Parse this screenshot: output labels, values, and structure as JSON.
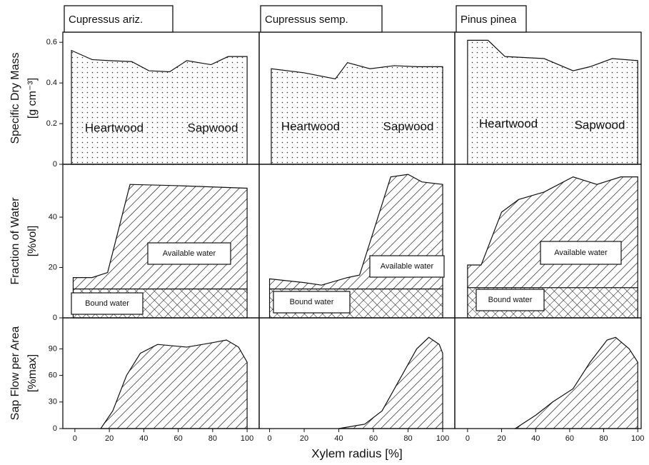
{
  "chart_data": [
    {
      "type": "area",
      "title": "Cupressus ariz.",
      "ylabel": [
        "Specific Dry Mass",
        "[g cm⁻³]"
      ],
      "annotations": [
        "Heartwood",
        "Sapwood"
      ],
      "xlim": [
        -7,
        107
      ],
      "ylim": [
        0,
        0.65
      ],
      "yticks": [
        0,
        0.2,
        0.4,
        0.6
      ],
      "x": [
        -2,
        10,
        20,
        33,
        43,
        55,
        65,
        79,
        89,
        100
      ],
      "series": [
        {
          "pattern": "dots",
          "values": [
            0.56,
            0.515,
            0.51,
            0.505,
            0.46,
            0.455,
            0.51,
            0.49,
            0.53,
            0.53
          ]
        }
      ]
    },
    {
      "type": "area",
      "title": "Cupressus semp.",
      "annotations": [
        "Heartwood",
        "Sapwood"
      ],
      "xlim": [
        -6,
        107
      ],
      "ylim": [
        0,
        0.65
      ],
      "x": [
        1,
        20,
        38,
        45,
        58,
        72,
        85,
        100
      ],
      "series": [
        {
          "pattern": "dots",
          "values": [
            0.47,
            0.45,
            0.42,
            0.5,
            0.47,
            0.485,
            0.48,
            0.48
          ]
        }
      ]
    },
    {
      "type": "area",
      "title": "Pinus pinea",
      "annotations": [
        "Heartwood",
        "Sapwood"
      ],
      "xlim": [
        -7.5,
        102
      ],
      "ylim": [
        0,
        0.65
      ],
      "x": [
        0,
        12,
        22,
        45,
        62,
        72,
        85,
        100
      ],
      "series": [
        {
          "pattern": "dots",
          "values": [
            0.61,
            0.61,
            0.53,
            0.52,
            0.46,
            0.48,
            0.52,
            0.51
          ]
        }
      ]
    },
    {
      "type": "area",
      "ylabel": [
        "Fraction of Water",
        "[%vol]"
      ],
      "xlim": [
        -7,
        107
      ],
      "ylim": [
        0,
        61
      ],
      "yticks": [
        0,
        20,
        40
      ],
      "x": [
        -1,
        10,
        19,
        32,
        60,
        100
      ],
      "series": [
        {
          "name": "Bound water",
          "pattern": "cross",
          "values": [
            11.5,
            11.5,
            11.5,
            11.5,
            11.5,
            11.5
          ]
        },
        {
          "name": "Available water",
          "pattern": "hatch",
          "values": [
            4.5,
            4.5,
            6.5,
            41.5,
            41,
            40
          ]
        }
      ]
    },
    {
      "type": "area",
      "xlim": [
        -6,
        107
      ],
      "ylim": [
        0,
        61
      ],
      "x": [
        0,
        20,
        30,
        45,
        52,
        70,
        80,
        88,
        100
      ],
      "series": [
        {
          "name": "Bound water",
          "pattern": "cross",
          "values": [
            11.5,
            11.5,
            11.5,
            11.5,
            11.5,
            11.5,
            11.5,
            11.5,
            11.5
          ]
        },
        {
          "name": "Available water",
          "pattern": "hatch",
          "values": [
            4,
            2.5,
            1.5,
            4.5,
            5.5,
            44.5,
            45.5,
            42.5,
            41.5
          ]
        }
      ]
    },
    {
      "type": "area",
      "xlim": [
        -7.5,
        102
      ],
      "ylim": [
        0,
        61
      ],
      "x": [
        0,
        8,
        20,
        30,
        45,
        62,
        76,
        90,
        100
      ],
      "series": [
        {
          "name": "Bound water",
          "pattern": "cross",
          "values": [
            12,
            12,
            12,
            12,
            12,
            12,
            12,
            12,
            12
          ]
        },
        {
          "name": "Available water",
          "pattern": "hatch",
          "values": [
            9,
            9,
            30,
            35,
            38,
            44,
            41,
            44,
            44
          ]
        }
      ]
    },
    {
      "type": "area",
      "ylabel": [
        "Sap Flow per Area",
        "[%max]"
      ],
      "xlim": [
        -7,
        107
      ],
      "ylim": [
        0,
        125
      ],
      "yticks": [
        0,
        30,
        60,
        90
      ],
      "xticks": [
        0,
        20,
        40,
        60,
        80,
        100
      ],
      "x": [
        15,
        22,
        30,
        38,
        48,
        65,
        80,
        88,
        95,
        100
      ],
      "series": [
        {
          "pattern": "hatch",
          "values": [
            0,
            20,
            60,
            85,
            95,
            92,
            97,
            100,
            92,
            75
          ]
        }
      ]
    },
    {
      "type": "area",
      "xlabel": "Xylem radius [%]",
      "xlim": [
        -6,
        107
      ],
      "ylim": [
        0,
        125
      ],
      "xticks": [
        0,
        20,
        40,
        60,
        80,
        100
      ],
      "x": [
        40,
        55,
        65,
        75,
        85,
        92,
        98,
        100
      ],
      "series": [
        {
          "pattern": "hatch",
          "values": [
            0,
            5,
            20,
            55,
            90,
            103,
            95,
            85
          ]
        }
      ]
    },
    {
      "type": "area",
      "xlim": [
        -7.5,
        102
      ],
      "ylim": [
        0,
        125
      ],
      "xticks": [
        0,
        20,
        40,
        60,
        80,
        100
      ],
      "x": [
        28,
        40,
        50,
        62,
        72,
        82,
        87,
        95,
        100
      ],
      "series": [
        {
          "pattern": "hatch",
          "values": [
            0,
            15,
            30,
            45,
            75,
            100,
            103,
            90,
            75
          ]
        }
      ]
    }
  ]
}
